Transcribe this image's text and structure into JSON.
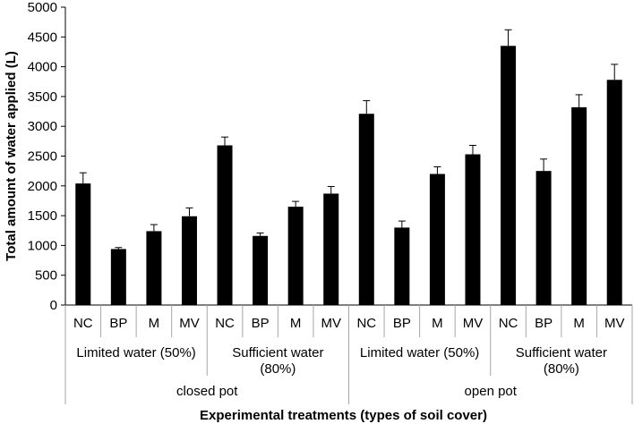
{
  "chart_data": {
    "type": "bar",
    "ylabel": "Total amount of water applied (L)",
    "xlabel": "Experimental treatments (types of soil cover)",
    "ylim": [
      0,
      5000
    ],
    "yticks": [
      0,
      500,
      1000,
      1500,
      2000,
      2500,
      3000,
      3500,
      4000,
      4500,
      5000
    ],
    "grid": false,
    "legend": "none",
    "bar_color": "#000000",
    "categories": [
      "NC",
      "BP",
      "M",
      "MV",
      "NC",
      "BP",
      "M",
      "MV",
      "NC",
      "BP",
      "M",
      "MV",
      "NC",
      "BP",
      "M",
      "MV"
    ],
    "values": [
      2040,
      940,
      1240,
      1490,
      2680,
      1160,
      1650,
      1870,
      3210,
      1300,
      2200,
      2530,
      4350,
      2250,
      3320,
      3780
    ],
    "errors": [
      180,
      25,
      110,
      140,
      140,
      50,
      90,
      120,
      220,
      110,
      120,
      150,
      270,
      200,
      210,
      260
    ],
    "groups_level2": [
      {
        "label": "Limited water (50%)",
        "span": 4
      },
      {
        "label": "Sufficient water (80%)",
        "span": 4
      },
      {
        "label": "Limited water (50%)",
        "span": 4
      },
      {
        "label": "Sufficient water (80%)",
        "span": 4
      }
    ],
    "groups_level3": [
      {
        "label": "closed pot",
        "span": 8
      },
      {
        "label": "open pot",
        "span": 8
      }
    ]
  }
}
